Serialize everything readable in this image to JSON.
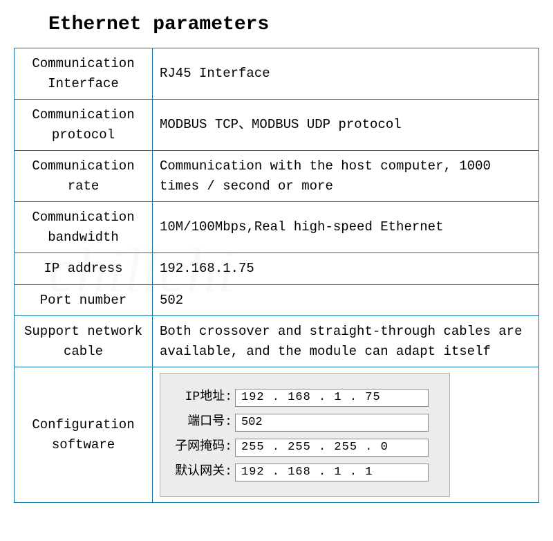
{
  "title": "Ethernet parameters",
  "table": {
    "border_color": "#0b6fa4",
    "text_color": "#000000",
    "font_family": "Courier New, monospace",
    "label_fontsize": 19,
    "value_fontsize": 19,
    "rows": [
      {
        "label": "Communication Interface",
        "value": "RJ45 Interface"
      },
      {
        "label": "Communication protocol",
        "value": "MODBUS TCP、MODBUS UDP protocol"
      },
      {
        "label": "Communication rate",
        "value": "Communication with the host computer, 1000 times / second or more"
      },
      {
        "label": "Communication bandwidth",
        "value": "10M/100Mbps,Real high-speed Ethernet"
      },
      {
        "label": "IP address",
        "value": "192.168.1.75"
      },
      {
        "label": "Port number",
        "value": "502"
      },
      {
        "label": "Support network cable",
        "value": "Both crossover and straight-through cables are available, and the module can adapt itself"
      }
    ],
    "config_label": "Configuration software",
    "config_panel": {
      "background": "#ececec",
      "border_color": "#b0b0b0",
      "fields": {
        "ip_label": "IP地址:",
        "ip_value": "192 . 168 .  1  . 75",
        "port_label": "端口号:",
        "port_value": "502",
        "subnet_label": "子网掩码:",
        "subnet_value": "255 . 255 . 255 .  0",
        "gateway_label": "默认网关:",
        "gateway_value": "192 . 168 .  1  .  1"
      }
    }
  },
  "watermark": "chillchi"
}
